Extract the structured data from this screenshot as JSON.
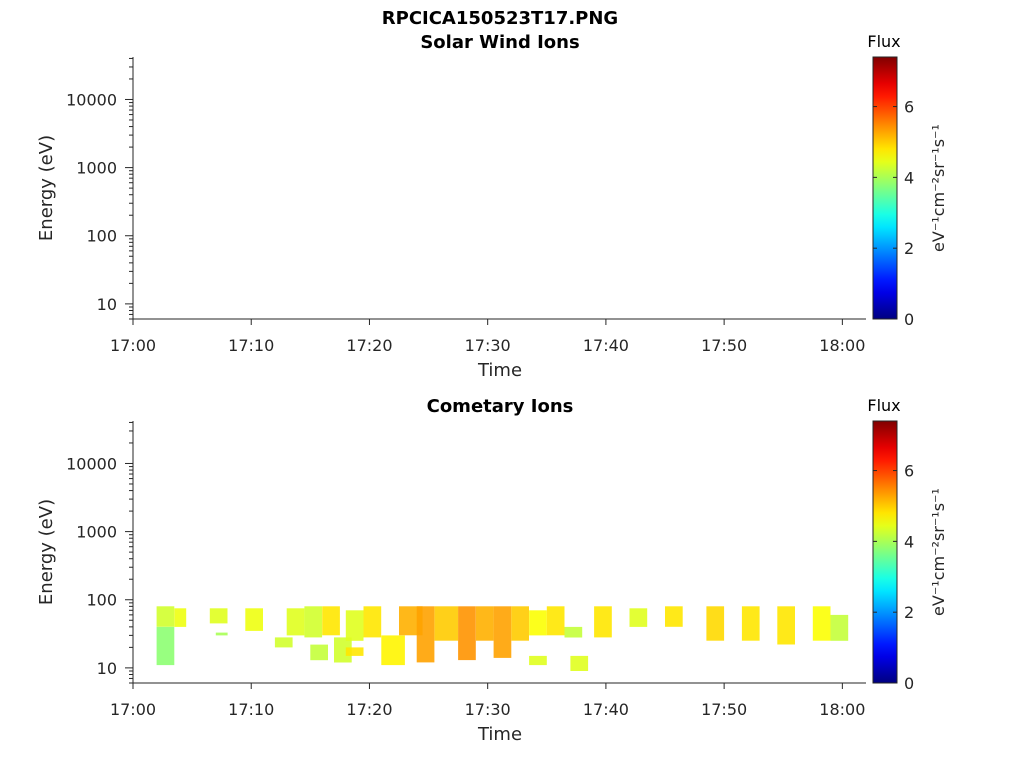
{
  "figure_title": "RPCICA150523T17.PNG",
  "chart_data": [
    {
      "type": "heatmap",
      "title": "Solar Wind Ions",
      "xlabel": "Time",
      "ylabel": "Energy (eV)",
      "x_ticks": [
        "17:00",
        "17:10",
        "17:20",
        "17:30",
        "17:40",
        "17:50",
        "18:00"
      ],
      "xlim": [
        "17:00",
        "18:02"
      ],
      "y_scale": "log",
      "y_ticks": [
        10,
        100,
        1000,
        10000
      ],
      "y_tick_labels": [
        "10",
        "100",
        "1000",
        "10000"
      ],
      "ylim": [
        6,
        42000
      ],
      "grid": false,
      "colorbar": {
        "title": "Flux",
        "label": "eV⁻¹cm⁻²sr⁻¹s⁻¹",
        "range": [
          0,
          7.4
        ],
        "ticks": [
          0,
          2,
          4,
          6
        ],
        "tick_labels": [
          "0",
          "2",
          "4",
          "6"
        ],
        "colormap": "jet"
      },
      "cells": []
    },
    {
      "type": "heatmap",
      "title": "Cometary Ions",
      "xlabel": "Time",
      "ylabel": "Energy (eV)",
      "x_ticks": [
        "17:00",
        "17:10",
        "17:20",
        "17:30",
        "17:40",
        "17:50",
        "18:00"
      ],
      "xlim": [
        "17:00",
        "18:02"
      ],
      "y_scale": "log",
      "y_ticks": [
        10,
        100,
        1000,
        10000
      ],
      "y_tick_labels": [
        "10",
        "100",
        "1000",
        "10000"
      ],
      "ylim": [
        6,
        42000
      ],
      "grid": false,
      "colorbar": {
        "title": "Flux",
        "label": "eV⁻¹cm⁻²sr⁻¹s⁻¹",
        "range": [
          0,
          7.4
        ],
        "ticks": [
          0,
          2,
          4,
          6
        ],
        "tick_labels": [
          "0",
          "2",
          "4",
          "6"
        ],
        "colormap": "jet"
      },
      "cell_columns": [
        "time_start",
        "time_end",
        "energy_low_eV",
        "energy_high_eV",
        "flux"
      ],
      "cells": [
        [
          "17:02.0",
          "17:03.5",
          40,
          80,
          4.3
        ],
        [
          "17:02.0",
          "17:03.5",
          11,
          40,
          3.8
        ],
        [
          "17:03.5",
          "17:04.5",
          40,
          75,
          4.5
        ],
        [
          "17:06.5",
          "17:08.0",
          45,
          75,
          4.4
        ],
        [
          "17:07.0",
          "17:08.0",
          30,
          33,
          4.0
        ],
        [
          "17:09.5",
          "17:11.0",
          35,
          75,
          4.5
        ],
        [
          "17:12.0",
          "17:13.5",
          20,
          28,
          4.3
        ],
        [
          "17:13.0",
          "17:14.5",
          30,
          75,
          4.4
        ],
        [
          "17:14.5",
          "17:16.0",
          28,
          80,
          4.3
        ],
        [
          "17:15.0",
          "17:16.5",
          13,
          22,
          4.2
        ],
        [
          "17:16.0",
          "17:17.5",
          30,
          80,
          4.8
        ],
        [
          "17:17.0",
          "17:18.5",
          12,
          28,
          4.3
        ],
        [
          "17:18.0",
          "17:19.5",
          25,
          70,
          4.4
        ],
        [
          "17:18.0",
          "17:19.5",
          15,
          20,
          4.8
        ],
        [
          "17:19.5",
          "17:21.0",
          28,
          80,
          4.8
        ],
        [
          "17:21.0",
          "17:23.0",
          11,
          30,
          4.7
        ],
        [
          "17:22.5",
          "17:24.5",
          30,
          80,
          5.2
        ],
        [
          "17:24.0",
          "17:25.5",
          12,
          80,
          5.3
        ],
        [
          "17:25.5",
          "17:27.5",
          25,
          80,
          5.0
        ],
        [
          "17:27.5",
          "17:29.0",
          13,
          80,
          5.4
        ],
        [
          "17:29.0",
          "17:30.5",
          25,
          80,
          5.2
        ],
        [
          "17:30.5",
          "17:32.0",
          14,
          80,
          5.3
        ],
        [
          "17:32.0",
          "17:33.5",
          25,
          80,
          5.0
        ],
        [
          "17:33.5",
          "17:35.0",
          30,
          70,
          4.6
        ],
        [
          "17:33.5",
          "17:35.0",
          11,
          15,
          4.4
        ],
        [
          "17:35.0",
          "17:36.5",
          30,
          80,
          4.8
        ],
        [
          "17:36.5",
          "17:38.0",
          28,
          40,
          4.2
        ],
        [
          "17:37.0",
          "17:38.5",
          9,
          15,
          4.4
        ],
        [
          "17:39.0",
          "17:40.5",
          28,
          80,
          4.8
        ],
        [
          "17:42.0",
          "17:43.5",
          40,
          75,
          4.4
        ],
        [
          "17:45.0",
          "17:46.5",
          40,
          80,
          4.8
        ],
        [
          "17:48.5",
          "17:50.0",
          25,
          80,
          4.9
        ],
        [
          "17:51.5",
          "17:53.0",
          25,
          80,
          4.8
        ],
        [
          "17:54.5",
          "17:56.0",
          22,
          80,
          4.8
        ],
        [
          "17:57.5",
          "17:59.0",
          25,
          80,
          4.6
        ],
        [
          "17:59.0",
          "18:00.5",
          25,
          60,
          4.2
        ]
      ]
    }
  ]
}
